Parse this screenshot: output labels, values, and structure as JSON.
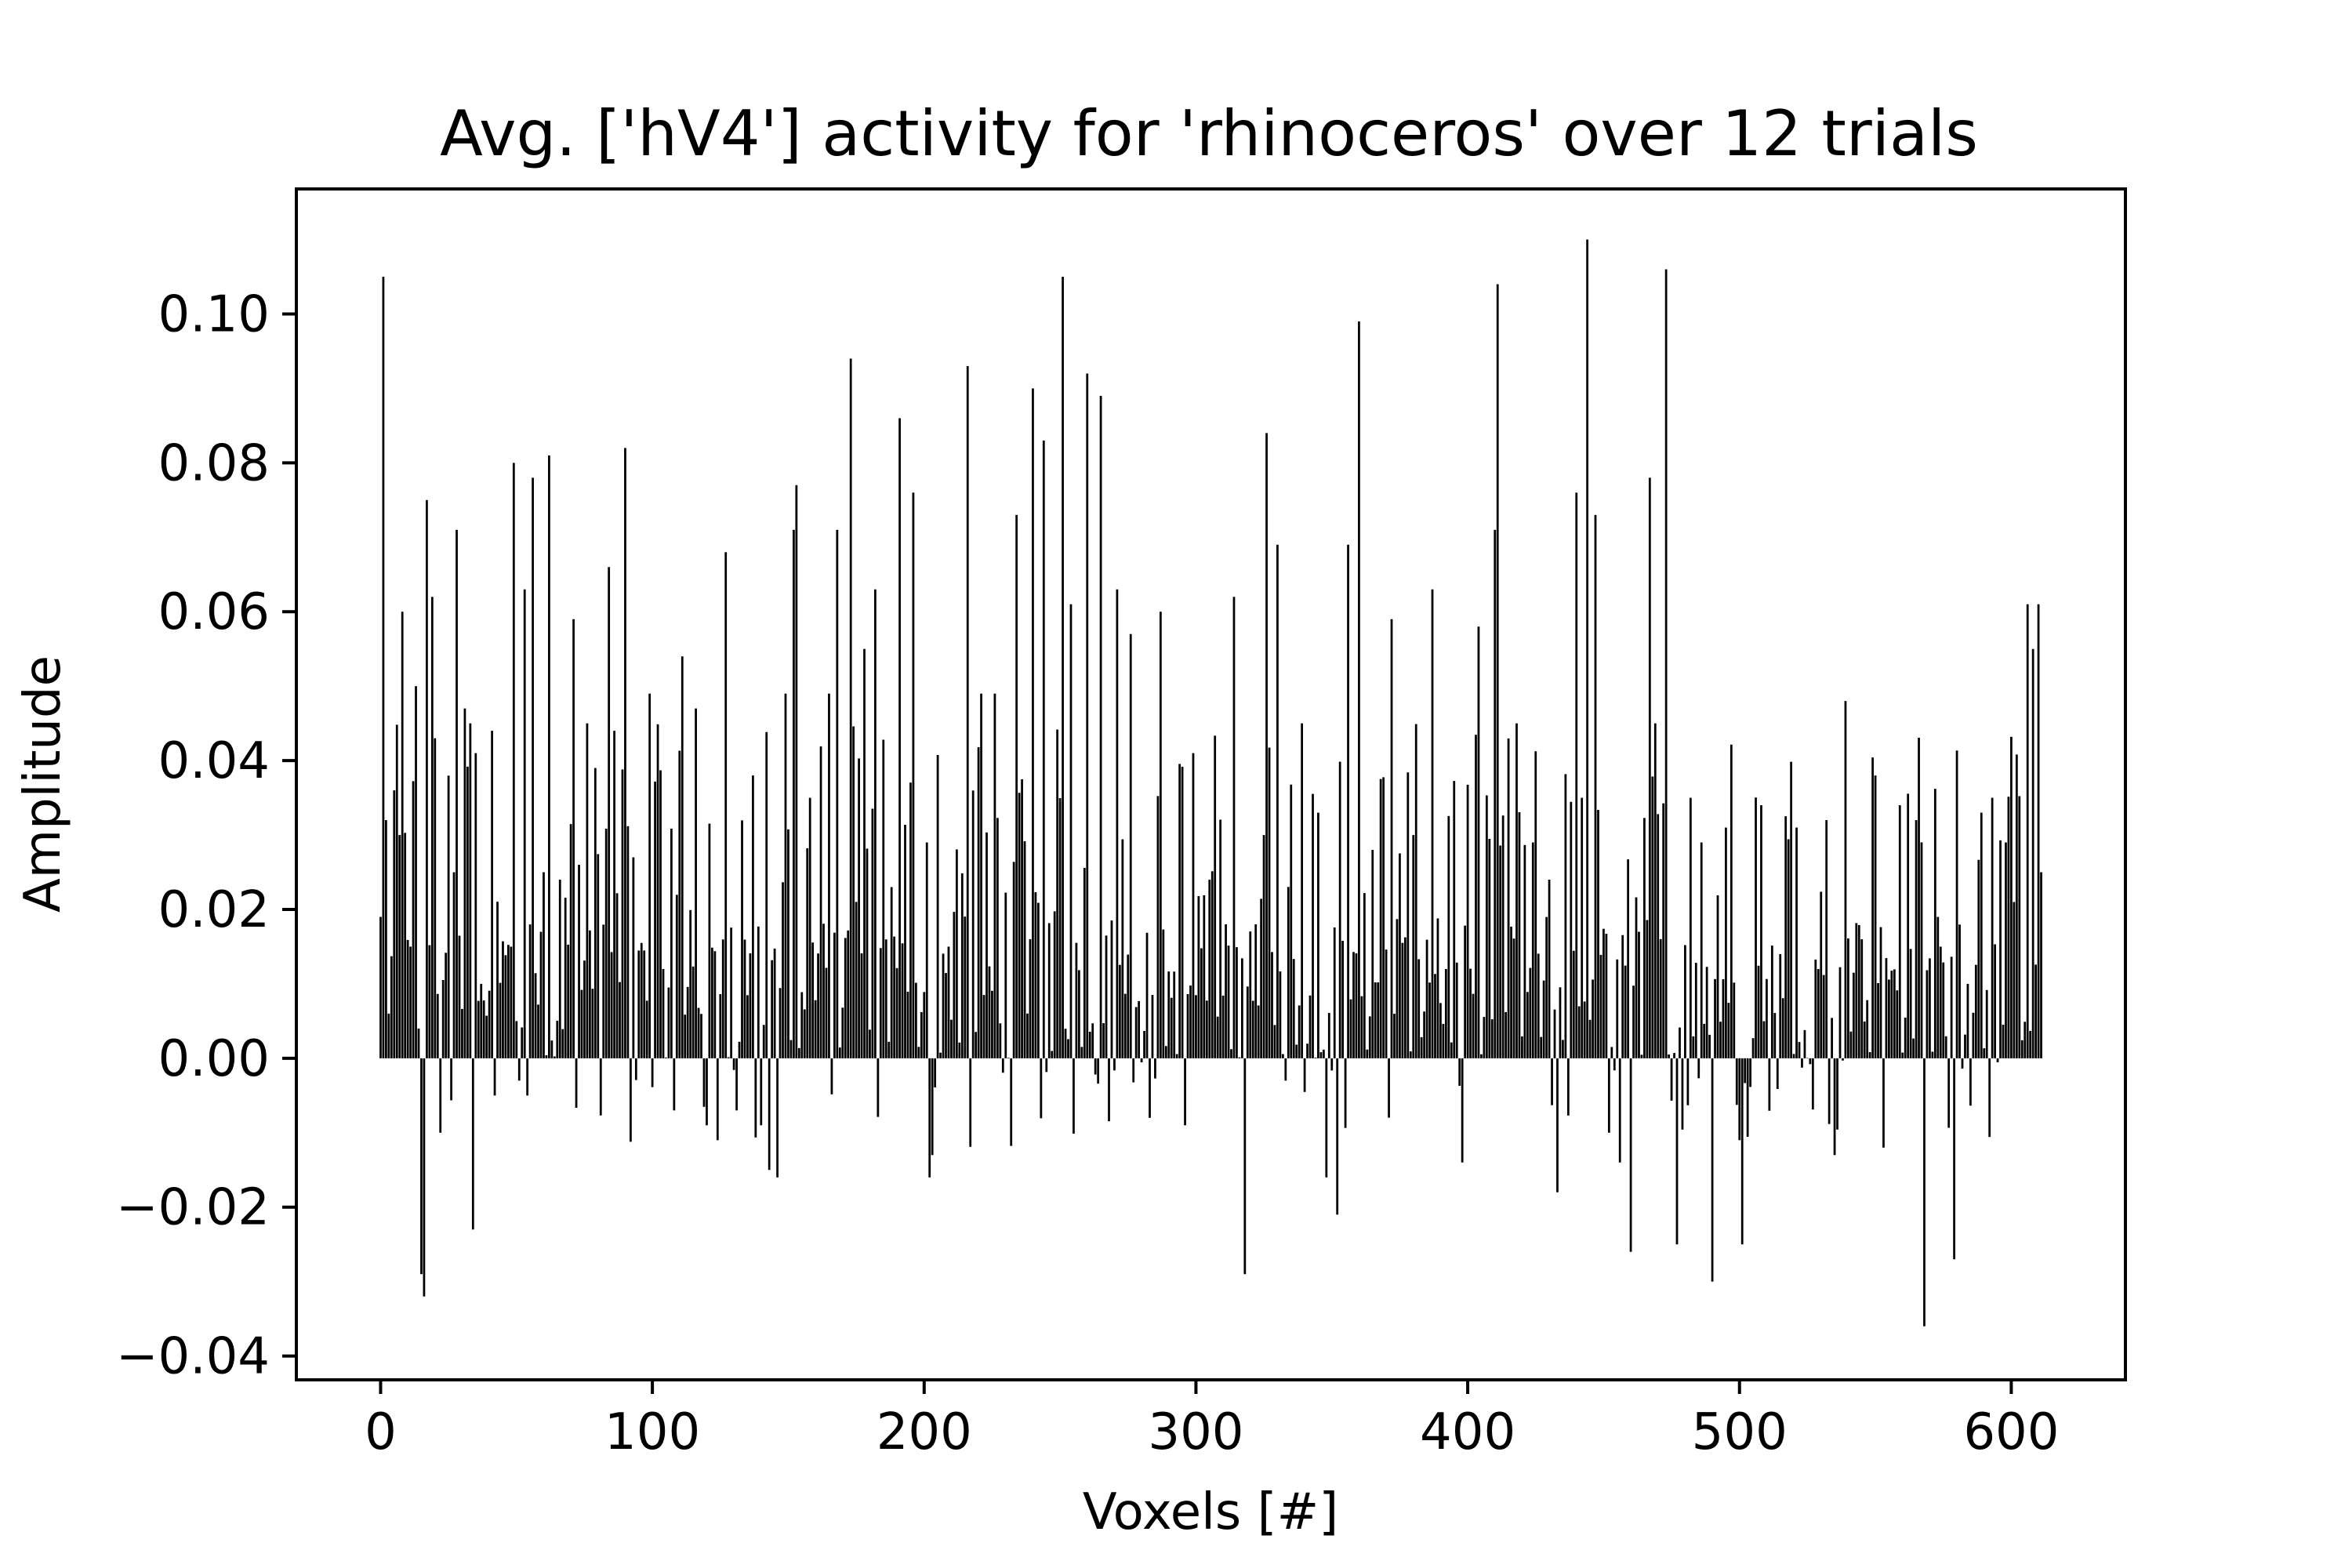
{
  "chart_data": {
    "type": "bar",
    "title": "Avg. ['hV4'] activity for 'rhinoceros' over 12 trials",
    "xlabel": "Voxels [#]",
    "ylabel": "Amplitude",
    "xlim": [
      -31,
      642
    ],
    "ylim": [
      -0.0432,
      0.1168
    ],
    "xticks": [
      0,
      100,
      200,
      300,
      400,
      500,
      600
    ],
    "yticks": [
      -0.04,
      -0.02,
      0.0,
      0.02,
      0.04,
      0.06,
      0.08,
      0.1
    ],
    "ytick_labels": [
      "−0.04",
      "−0.02",
      "0.00",
      "0.02",
      "0.04",
      "0.06",
      "0.08",
      "0.10"
    ],
    "grid": false,
    "bar_color": "#000000",
    "n_voxels": 612,
    "keypoints": [
      [
        0,
        0.019
      ],
      [
        1,
        0.105
      ],
      [
        2,
        0.032
      ],
      [
        3,
        0.006
      ],
      [
        5,
        0.036
      ],
      [
        7,
        0.03
      ],
      [
        8,
        0.06
      ],
      [
        11,
        0.015
      ],
      [
        13,
        0.05
      ],
      [
        14,
        0.004
      ],
      [
        15,
        -0.029
      ],
      [
        16,
        -0.032
      ],
      [
        17,
        0.075
      ],
      [
        19,
        0.062
      ],
      [
        20,
        0.043
      ],
      [
        22,
        -0.01
      ],
      [
        27,
        0.025
      ],
      [
        28,
        0.071
      ],
      [
        31,
        0.047
      ],
      [
        33,
        0.045
      ],
      [
        34,
        -0.023
      ],
      [
        35,
        0.041
      ],
      [
        37,
        0.01
      ],
      [
        41,
        0.044
      ],
      [
        42,
        -0.005
      ],
      [
        48,
        0.015
      ],
      [
        49,
        0.08
      ],
      [
        51,
        -0.003
      ],
      [
        53,
        0.063
      ],
      [
        54,
        -0.005
      ],
      [
        56,
        0.078
      ],
      [
        60,
        0.025
      ],
      [
        62,
        0.081
      ],
      [
        66,
        0.024
      ],
      [
        71,
        0.059
      ],
      [
        73,
        0.026
      ],
      [
        76,
        0.045
      ],
      [
        79,
        0.039
      ],
      [
        84,
        0.066
      ],
      [
        86,
        0.044
      ],
      [
        90,
        0.082
      ],
      [
        93,
        0.027
      ],
      [
        99,
        0.049
      ],
      [
        104,
        0.012
      ],
      [
        108,
        -0.007
      ],
      [
        111,
        0.054
      ],
      [
        116,
        0.047
      ],
      [
        120,
        -0.009
      ],
      [
        124,
        -0.011
      ],
      [
        127,
        0.068
      ],
      [
        131,
        -0.007
      ],
      [
        137,
        0.038
      ],
      [
        140,
        -0.009
      ],
      [
        143,
        -0.015
      ],
      [
        146,
        -0.016
      ],
      [
        149,
        0.049
      ],
      [
        152,
        0.071
      ],
      [
        153,
        0.077
      ],
      [
        158,
        0.035
      ],
      [
        165,
        0.049
      ],
      [
        168,
        0.071
      ],
      [
        173,
        0.094
      ],
      [
        178,
        0.055
      ],
      [
        182,
        0.063
      ],
      [
        188,
        0.023
      ],
      [
        191,
        0.086
      ],
      [
        196,
        0.076
      ],
      [
        201,
        0.029
      ],
      [
        202,
        -0.016
      ],
      [
        203,
        -0.013
      ],
      [
        209,
        0.015
      ],
      [
        216,
        0.093
      ],
      [
        221,
        0.049
      ],
      [
        226,
        0.049
      ],
      [
        234,
        0.073
      ],
      [
        240,
        0.09
      ],
      [
        244,
        0.083
      ],
      [
        251,
        0.105
      ],
      [
        254,
        0.061
      ],
      [
        260,
        0.092
      ],
      [
        265,
        0.089
      ],
      [
        271,
        0.063
      ],
      [
        276,
        0.057
      ],
      [
        283,
        -0.008
      ],
      [
        287,
        0.06
      ],
      [
        296,
        -0.009
      ],
      [
        299,
        0.041
      ],
      [
        305,
        0.024
      ],
      [
        311,
        0.018
      ],
      [
        314,
        0.062
      ],
      [
        318,
        -0.029
      ],
      [
        322,
        0.018
      ],
      [
        326,
        0.084
      ],
      [
        330,
        0.069
      ],
      [
        333,
        -0.003
      ],
      [
        339,
        0.045
      ],
      [
        345,
        0.033
      ],
      [
        348,
        -0.016
      ],
      [
        352,
        -0.021
      ],
      [
        356,
        0.069
      ],
      [
        360,
        0.099
      ],
      [
        365,
        0.028
      ],
      [
        372,
        0.059
      ],
      [
        380,
        0.03
      ],
      [
        387,
        0.063
      ],
      [
        392,
        0.012
      ],
      [
        398,
        -0.014
      ],
      [
        404,
        0.058
      ],
      [
        410,
        0.071
      ],
      [
        411,
        0.104
      ],
      [
        418,
        0.045
      ],
      [
        424,
        0.029
      ],
      [
        430,
        0.024
      ],
      [
        433,
        -0.018
      ],
      [
        440,
        0.076
      ],
      [
        442,
        0.035
      ],
      [
        444,
        0.11
      ],
      [
        447,
        0.073
      ],
      [
        452,
        -0.01
      ],
      [
        456,
        -0.014
      ],
      [
        460,
        -0.026
      ],
      [
        463,
        0.017
      ],
      [
        467,
        0.078
      ],
      [
        469,
        0.045
      ],
      [
        473,
        0.106
      ],
      [
        477,
        -0.025
      ],
      [
        482,
        0.035
      ],
      [
        486,
        0.029
      ],
      [
        490,
        -0.03
      ],
      [
        495,
        0.031
      ],
      [
        501,
        -0.025
      ],
      [
        508,
        0.034
      ],
      [
        515,
        0.014
      ],
      [
        521,
        0.031
      ],
      [
        529,
        0.012
      ],
      [
        532,
        0.032
      ],
      [
        535,
        -0.013
      ],
      [
        539,
        0.048
      ],
      [
        545,
        0.016
      ],
      [
        550,
        0.038
      ],
      [
        553,
        -0.012
      ],
      [
        559,
        0.034
      ],
      [
        565,
        0.032
      ],
      [
        568,
        -0.036
      ],
      [
        574,
        0.015
      ],
      [
        579,
        -0.027
      ],
      [
        584,
        0.01
      ],
      [
        589,
        0.033
      ],
      [
        593,
        0.035
      ],
      [
        598,
        0.029
      ],
      [
        601,
        0.021
      ],
      [
        606,
        0.061
      ],
      [
        608,
        0.055
      ],
      [
        610,
        0.061
      ],
      [
        611,
        0.025
      ]
    ]
  }
}
